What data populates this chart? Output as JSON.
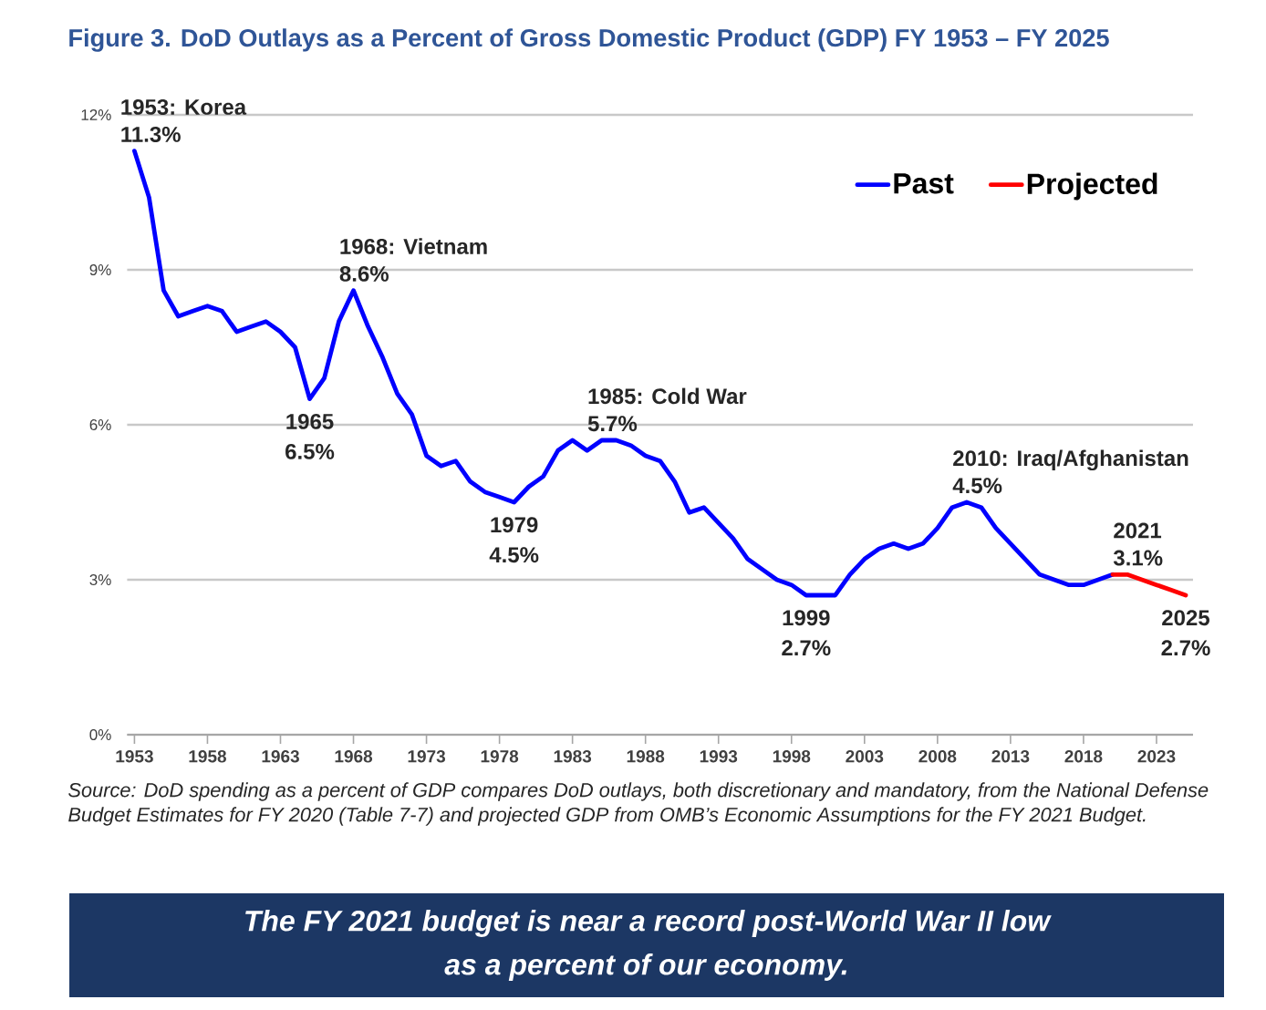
{
  "chart_data": {
    "type": "line",
    "title": "Figure 3. DoD Outlays as a Percent of Gross Domestic Product (GDP) FY 1953 – FY 2025",
    "xlim": [
      1952.5,
      2025.5
    ],
    "xticks": [
      1953,
      1958,
      1963,
      1968,
      1973,
      1978,
      1983,
      1988,
      1993,
      1998,
      2003,
      2008,
      2013,
      2018,
      2023
    ],
    "ylim": [
      0,
      12
    ],
    "yticks": [
      {
        "value": 0,
        "label": "0%"
      },
      {
        "value": 3,
        "label": "3%"
      },
      {
        "value": 6,
        "label": "6%"
      },
      {
        "value": 9,
        "label": "9%"
      },
      {
        "value": 12,
        "label": "12%"
      }
    ],
    "grid": "y",
    "legend": "top right",
    "series": [
      {
        "name": "Past",
        "color": "#0000ff",
        "x": [
          1953,
          1954,
          1955,
          1956,
          1957,
          1958,
          1959,
          1960,
          1961,
          1962,
          1963,
          1964,
          1965,
          1966,
          1967,
          1968,
          1969,
          1970,
          1971,
          1972,
          1973,
          1974,
          1975,
          1976,
          1977,
          1978,
          1979,
          1980,
          1981,
          1982,
          1983,
          1984,
          1985,
          1986,
          1987,
          1988,
          1989,
          1990,
          1991,
          1992,
          1993,
          1994,
          1995,
          1996,
          1997,
          1998,
          1999,
          2000,
          2001,
          2002,
          2003,
          2004,
          2005,
          2006,
          2007,
          2008,
          2009,
          2010,
          2011,
          2012,
          2013,
          2014,
          2015,
          2016,
          2017,
          2018,
          2019,
          2020
        ],
        "values": [
          11.3,
          10.4,
          8.6,
          8.1,
          8.2,
          8.3,
          8.2,
          7.8,
          7.9,
          8.0,
          7.8,
          7.5,
          6.5,
          6.9,
          8.0,
          8.6,
          7.9,
          7.3,
          6.6,
          6.2,
          5.4,
          5.2,
          5.3,
          4.9,
          4.7,
          4.6,
          4.5,
          4.8,
          5.0,
          5.5,
          5.7,
          5.5,
          5.7,
          5.7,
          5.6,
          5.4,
          5.3,
          4.9,
          4.3,
          4.4,
          4.1,
          3.8,
          3.4,
          3.2,
          3.0,
          2.9,
          2.7,
          2.7,
          2.7,
          3.1,
          3.4,
          3.6,
          3.7,
          3.6,
          3.7,
          4.0,
          4.4,
          4.5,
          4.4,
          4.0,
          3.7,
          3.4,
          3.1,
          3.0,
          2.9,
          2.9,
          3.0,
          3.1
        ],
        "value_labels": [
          "11.3%",
          null,
          null,
          null,
          null,
          null,
          null,
          null,
          null,
          null,
          null,
          null,
          "6.5%",
          null,
          null,
          "8.6%",
          null,
          null,
          null,
          null,
          null,
          null,
          null,
          null,
          null,
          null,
          "4.5%",
          null,
          null,
          null,
          null,
          null,
          "5.7%",
          null,
          null,
          null,
          null,
          null,
          null,
          null,
          null,
          null,
          null,
          null,
          null,
          null,
          "2.7%",
          null,
          null,
          null,
          null,
          null,
          null,
          null,
          null,
          null,
          null,
          "4.5%",
          null,
          null,
          null,
          null,
          null,
          null,
          null,
          null,
          null,
          null
        ]
      },
      {
        "name": "Projected",
        "color": "#ff0000",
        "x": [
          2020,
          2021,
          2022,
          2023,
          2024,
          2025
        ],
        "values": [
          3.1,
          3.1,
          3.0,
          2.9,
          2.8,
          2.7
        ],
        "value_labels": [
          null,
          "3.1%",
          null,
          null,
          null,
          "2.7%"
        ]
      }
    ],
    "annotations": [
      {
        "text": "1953: Korea",
        "x": 1953,
        "y": 11.3
      },
      {
        "text": "1965",
        "x": 1965,
        "y": 6.5
      },
      {
        "text": "1968: Vietnam",
        "x": 1968,
        "y": 8.6
      },
      {
        "text": "1979",
        "x": 1979,
        "y": 4.5
      },
      {
        "text": "1985: Cold War",
        "x": 1985,
        "y": 5.7
      },
      {
        "text": "1999",
        "x": 1999,
        "y": 2.7
      },
      {
        "text": "2010: Iraq/Afghanistan",
        "x": 2010,
        "y": 4.5
      },
      {
        "text": "2021",
        "x": 2021,
        "y": 3.1
      },
      {
        "text": "2025",
        "x": 2025,
        "y": 2.7
      },
      "Source: DoD spending as a percent of GDP compares DoD outlays, both discretionary and mandatory, from the National Defense Budget Estimates for FY 2020 (Table 7-7) and projected GDP from OMB’s Economic Assumptions for the FY 2021 Budget.",
      "The FY 2021 budget is near a record post-World War II low as a percent of our economy."
    ]
  }
}
